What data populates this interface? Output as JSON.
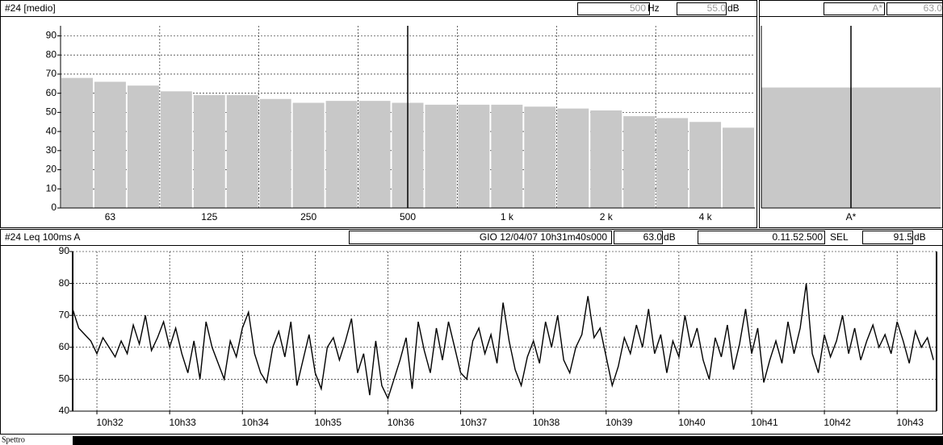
{
  "spectrum_header": {
    "title": "#24 [medio]",
    "cursor_freq": "500",
    "freq_unit": "Hz",
    "cursor_level": "55.0",
    "level_unit": "dB"
  },
  "total_header": {
    "band": "A*",
    "level": "63.0"
  },
  "time_header": {
    "title": "#24  Leq 100ms  A",
    "timestamp": "GIO 12/04/07 10h31m40s000",
    "level": "63.0",
    "level_unit": "dB",
    "duration": "0.11.52.500",
    "sel_label": "SEL",
    "sel_value": "91.5",
    "sel_unit": "dB"
  },
  "footer": {
    "label": "Spettro"
  },
  "chart_data": [
    {
      "type": "bar",
      "color": "#c8c8c8",
      "grid": true,
      "categories": [
        null,
        "63",
        null,
        null,
        "125",
        null,
        null,
        "250",
        null,
        null,
        "500",
        null,
        null,
        "1 k",
        null,
        null,
        "2 k",
        null,
        null,
        "4 k",
        null
      ],
      "values": [
        68,
        66,
        64,
        61,
        59,
        59,
        57,
        55,
        56,
        56,
        55,
        54,
        54,
        54,
        53,
        52,
        51,
        48,
        47,
        45,
        42
      ],
      "ylim": [
        0,
        94
      ],
      "yticks": [
        0,
        10,
        20,
        30,
        40,
        50,
        60,
        70,
        80,
        90
      ]
    },
    {
      "type": "bar",
      "color": "#c8c8c8",
      "grid": false,
      "categories": [
        "A*"
      ],
      "values": [
        63
      ],
      "ylim": [
        0,
        94
      ]
    },
    {
      "type": "line",
      "color": "#000000",
      "grid": true,
      "xlim": [
        37900,
        38612.5
      ],
      "ylim": [
        40,
        90
      ],
      "yticks": [
        40,
        50,
        60,
        70,
        80,
        90
      ],
      "xticks": [
        {
          "value": 37920,
          "label": "10h32"
        },
        {
          "value": 37980,
          "label": "10h33"
        },
        {
          "value": 38040,
          "label": "10h34"
        },
        {
          "value": 38100,
          "label": "10h35"
        },
        {
          "value": 38160,
          "label": "10h36"
        },
        {
          "value": 38220,
          "label": "10h37"
        },
        {
          "value": 38280,
          "label": "10h38"
        },
        {
          "value": 38340,
          "label": "10h39"
        },
        {
          "value": 38400,
          "label": "10h40"
        },
        {
          "value": 38460,
          "label": "10h41"
        },
        {
          "value": 38520,
          "label": "10h42"
        },
        {
          "value": 38580,
          "label": "10h43"
        }
      ],
      "x": [
        37900,
        37905,
        37910,
        37915,
        37920,
        37925,
        37930,
        37935,
        37940,
        37945,
        37950,
        37955,
        37960,
        37965,
        37970,
        37975,
        37980,
        37985,
        37990,
        37995,
        38000,
        38005,
        38010,
        38015,
        38020,
        38025,
        38030,
        38035,
        38040,
        38045,
        38050,
        38055,
        38060,
        38065,
        38070,
        38075,
        38080,
        38085,
        38090,
        38095,
        38100,
        38105,
        38110,
        38115,
        38120,
        38125,
        38130,
        38135,
        38140,
        38145,
        38150,
        38155,
        38160,
        38165,
        38170,
        38175,
        38180,
        38185,
        38190,
        38195,
        38200,
        38205,
        38210,
        38215,
        38220,
        38225,
        38230,
        38235,
        38240,
        38245,
        38250,
        38255,
        38260,
        38265,
        38270,
        38275,
        38280,
        38285,
        38290,
        38295,
        38300,
        38305,
        38310,
        38315,
        38320,
        38325,
        38330,
        38335,
        38340,
        38345,
        38350,
        38355,
        38360,
        38365,
        38370,
        38375,
        38380,
        38385,
        38390,
        38395,
        38400,
        38405,
        38410,
        38415,
        38420,
        38425,
        38430,
        38435,
        38440,
        38445,
        38450,
        38455,
        38460,
        38465,
        38470,
        38475,
        38480,
        38485,
        38490,
        38495,
        38500,
        38505,
        38510,
        38515,
        38520,
        38525,
        38530,
        38535,
        38540,
        38545,
        38550,
        38555,
        38560,
        38565,
        38570,
        38575,
        38580,
        38585,
        38590,
        38595,
        38600,
        38605,
        38610
      ],
      "values": [
        72,
        66,
        64,
        62,
        58,
        63,
        60,
        57,
        62,
        58,
        67,
        61,
        70,
        59,
        63,
        68,
        60,
        66,
        58,
        52,
        62,
        50,
        68,
        60,
        55,
        50,
        62,
        57,
        66,
        71,
        58,
        52,
        49,
        60,
        65,
        57,
        68,
        48,
        56,
        64,
        52,
        47,
        60,
        63,
        56,
        62,
        69,
        52,
        58,
        45,
        62,
        48,
        44,
        50,
        56,
        63,
        47,
        68,
        59,
        52,
        66,
        56,
        68,
        60,
        52,
        50,
        62,
        66,
        58,
        64,
        55,
        74,
        62,
        53,
        48,
        57,
        62,
        55,
        68,
        60,
        70,
        56,
        52,
        60,
        64,
        76,
        63,
        66,
        57,
        48,
        54,
        63,
        58,
        67,
        60,
        72,
        58,
        64,
        52,
        62,
        57,
        70,
        60,
        66,
        56,
        50,
        63,
        57,
        67,
        53,
        61,
        72,
        58,
        66,
        49,
        56,
        62,
        55,
        68,
        58,
        66,
        80,
        58,
        52,
        64,
        57,
        62,
        70,
        58,
        66,
        56,
        62,
        67,
        60,
        64,
        58,
        68,
        62,
        55,
        65,
        60,
        63,
        56
      ]
    }
  ]
}
